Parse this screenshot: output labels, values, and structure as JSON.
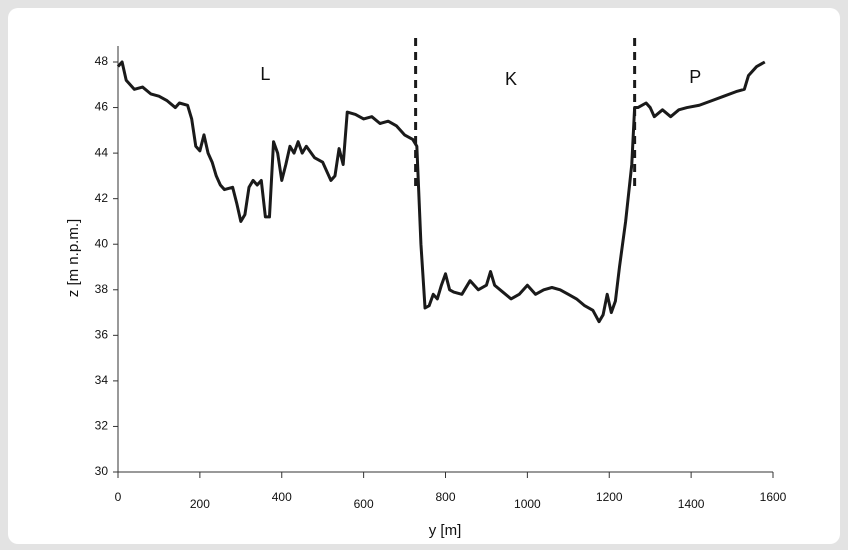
{
  "chart_data": {
    "type": "line",
    "x_label": "y [m]",
    "y_label": "z [m n.p.m.]",
    "annotations": [
      {
        "text": "L",
        "x": 360
      },
      {
        "text": "K",
        "x": 960
      },
      {
        "text": "P",
        "x": 1410
      }
    ],
    "dividers": [
      727,
      1262
    ],
    "xlim": [
      0,
      1600
    ],
    "xticks": [
      0,
      200,
      400,
      600,
      800,
      1000,
      1200,
      1400,
      1600
    ],
    "ylim": [
      30,
      48
    ],
    "yticks": [
      30,
      32,
      34,
      36,
      38,
      40,
      42,
      44,
      46,
      48
    ],
    "color": "#1a1a1a",
    "x": [
      0,
      10,
      20,
      40,
      60,
      80,
      100,
      120,
      140,
      150,
      170,
      180,
      190,
      200,
      210,
      220,
      230,
      240,
      250,
      260,
      280,
      290,
      300,
      310,
      320,
      330,
      340,
      350,
      360,
      370,
      380,
      390,
      400,
      410,
      420,
      430,
      440,
      450,
      460,
      480,
      500,
      520,
      530,
      540,
      550,
      560,
      580,
      600,
      620,
      640,
      660,
      680,
      700,
      720,
      730,
      740,
      750,
      760,
      770,
      780,
      790,
      800,
      810,
      820,
      840,
      860,
      880,
      900,
      910,
      920,
      940,
      960,
      980,
      1000,
      1020,
      1040,
      1060,
      1080,
      1100,
      1120,
      1140,
      1160,
      1175,
      1185,
      1195,
      1205,
      1215,
      1225,
      1240,
      1255,
      1262,
      1270,
      1290,
      1300,
      1310,
      1330,
      1350,
      1370,
      1390,
      1420,
      1450,
      1480,
      1510,
      1530,
      1540,
      1560,
      1580
    ],
    "values": [
      47.8,
      48.0,
      47.2,
      46.8,
      46.9,
      46.6,
      46.5,
      46.3,
      46.0,
      46.2,
      46.1,
      45.5,
      44.3,
      44.1,
      44.8,
      44.0,
      43.6,
      43.0,
      42.6,
      42.4,
      42.5,
      41.8,
      41.0,
      41.3,
      42.5,
      42.8,
      42.6,
      42.8,
      41.2,
      41.2,
      44.5,
      44.0,
      42.8,
      43.5,
      44.3,
      44.0,
      44.5,
      44.0,
      44.3,
      43.8,
      43.6,
      42.8,
      43.0,
      44.2,
      43.5,
      45.8,
      45.7,
      45.5,
      45.6,
      45.3,
      45.4,
      45.2,
      44.8,
      44.6,
      44.3,
      40.0,
      37.2,
      37.3,
      37.8,
      37.6,
      38.2,
      38.7,
      38.0,
      37.9,
      37.8,
      38.4,
      38.0,
      38.2,
      38.8,
      38.2,
      37.9,
      37.6,
      37.8,
      38.2,
      37.8,
      38.0,
      38.1,
      38.0,
      37.8,
      37.6,
      37.3,
      37.1,
      36.6,
      36.9,
      37.8,
      37.0,
      37.5,
      39.0,
      41.0,
      43.5,
      46.0,
      46.0,
      46.2,
      46.0,
      45.6,
      45.9,
      45.6,
      45.9,
      46.0,
      46.1,
      46.3,
      46.5,
      46.7,
      46.8,
      47.4,
      47.8,
      48.0
    ]
  }
}
